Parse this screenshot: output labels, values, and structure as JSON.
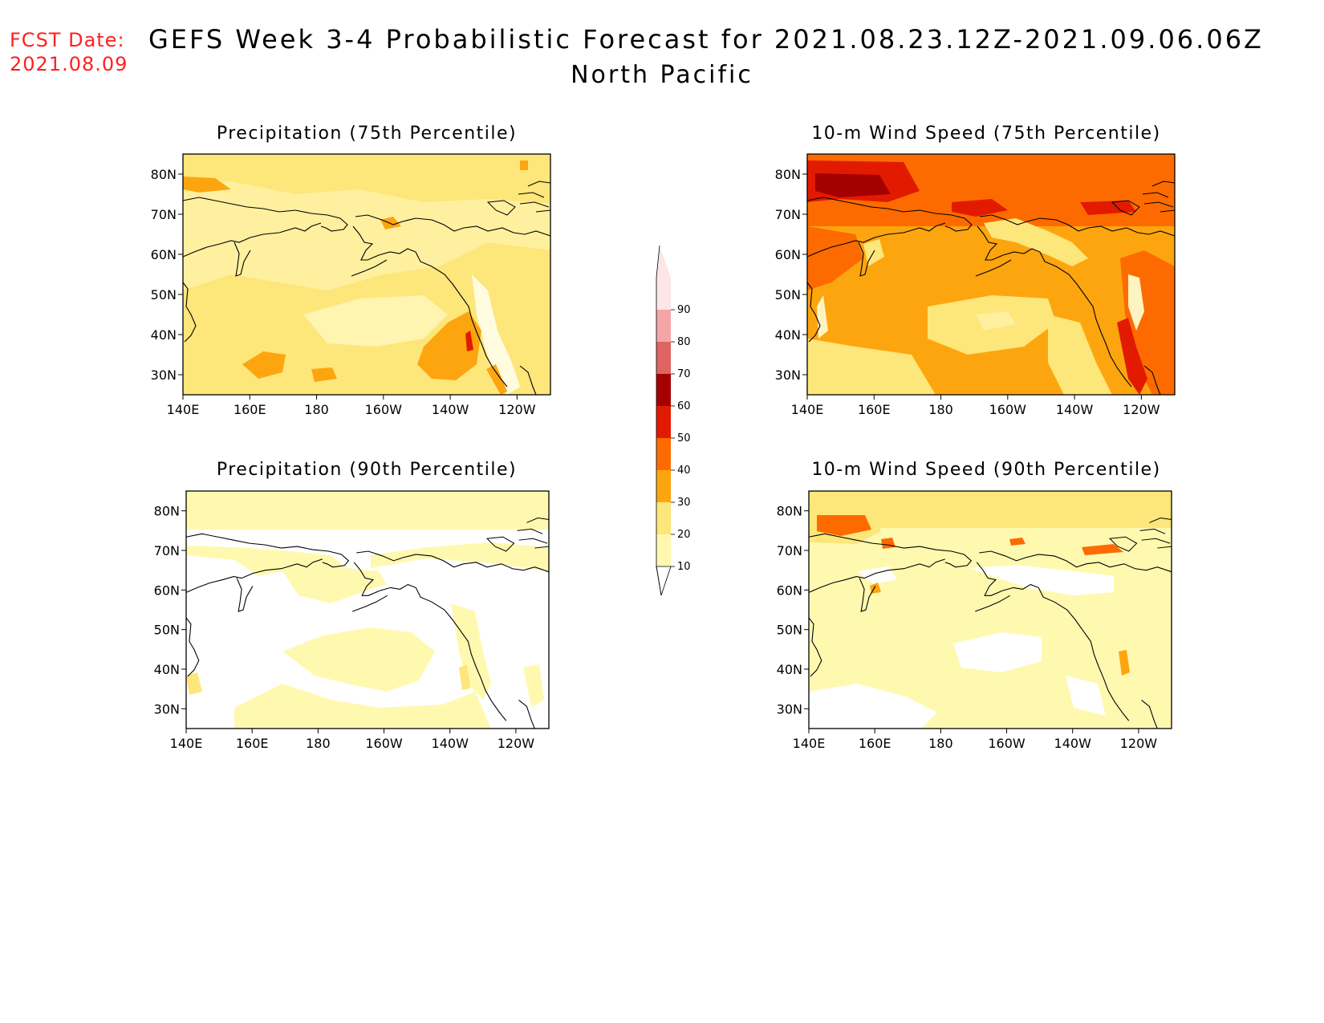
{
  "header": {
    "fcst_label": "FCST Date:",
    "fcst_date": "2021.08.09",
    "title": "GEFS Week 3-4 Probabilistic Forecast for 2021.08.23.12Z-2021.09.06.06Z",
    "subtitle": "North Pacific"
  },
  "panels": [
    {
      "id": "precip75",
      "title": "Precipitation (75th Percentile)"
    },
    {
      "id": "wind75",
      "title": "10-m Wind Speed (75th Percentile)"
    },
    {
      "id": "precip90",
      "title": "Precipitation (90th Percentile)"
    },
    {
      "id": "wind90",
      "title": "10-m Wind Speed (90th Percentile)"
    }
  ],
  "axes": {
    "lon_labels": [
      "140E",
      "160E",
      "180",
      "160W",
      "140W",
      "120W"
    ],
    "lat_labels": [
      "80N",
      "70N",
      "60N",
      "50N",
      "40N",
      "30N"
    ]
  },
  "colorbar": {
    "levels": [
      10,
      20,
      30,
      40,
      50,
      60,
      70,
      80,
      90
    ],
    "labels": [
      "10",
      "20",
      "30",
      "40",
      "50",
      "60",
      "70",
      "80",
      "90"
    ],
    "colors": [
      "#fff9b0",
      "#fde67a",
      "#fda50f",
      "#fd6b00",
      "#e21a00",
      "#a50000",
      "#de6464",
      "#f4a5a5",
      "#fde6e6"
    ]
  }
}
